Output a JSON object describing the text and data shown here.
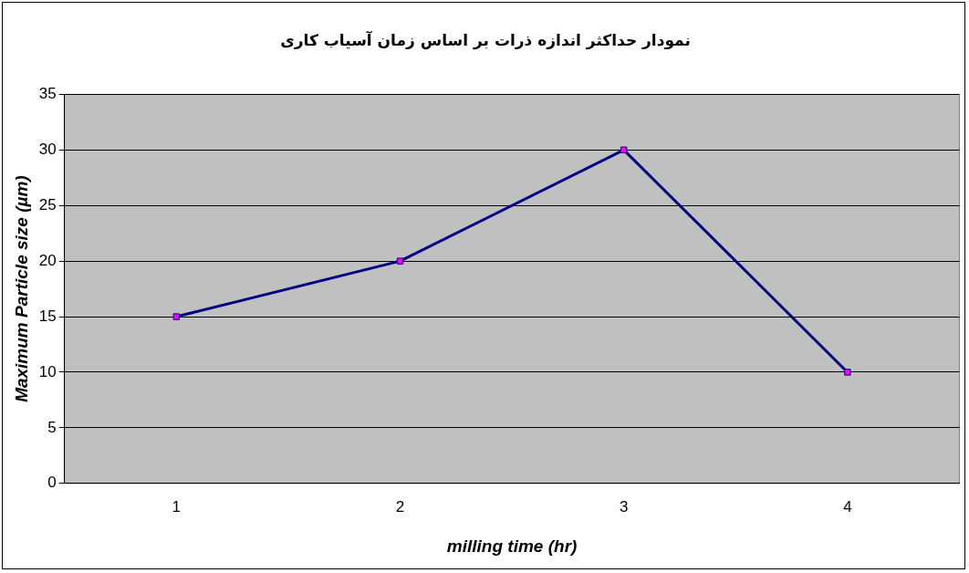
{
  "chart_data": {
    "type": "line",
    "title": "نمودار حداکثر اندازه ذرات بر اساس زمان آسیاب کاری",
    "xlabel": "milling time (hr)",
    "ylabel": "Maximum Particle size (µm)",
    "categories": [
      "1",
      "2",
      "3",
      "4"
    ],
    "series": [
      {
        "color": "#000080",
        "values": [
          15,
          20,
          30,
          10
        ]
      }
    ],
    "marker": "square",
    "line_style": "solid",
    "ylim": [
      0,
      35
    ],
    "yticks": [
      0,
      5,
      10,
      15,
      20,
      25,
      30,
      35
    ],
    "grid": "y",
    "legend": false
  }
}
